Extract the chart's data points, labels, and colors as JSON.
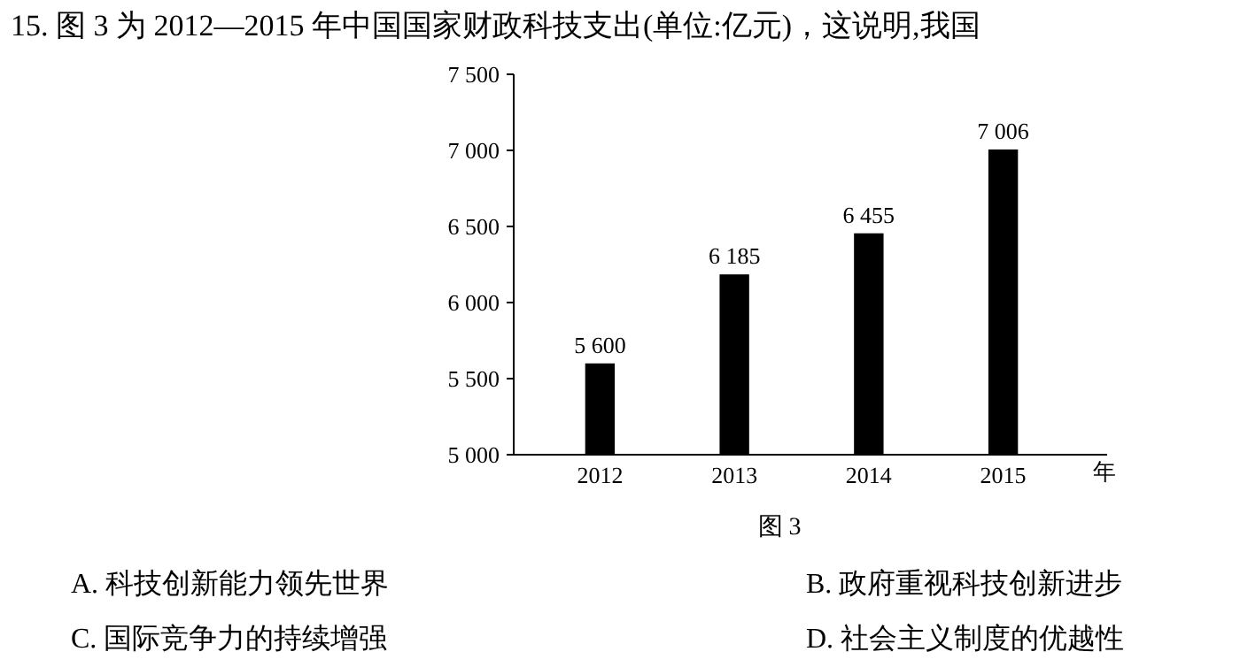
{
  "chart_data": {
    "type": "bar",
    "title": "15. 图 3 为 2012—2015 年中国国家财政科技支出(单位:亿元)，这说明,我国",
    "xlabel": "年",
    "categories": [
      "2012",
      "2013",
      "2014",
      "2015"
    ],
    "values": [
      5600,
      6185,
      6455,
      7006
    ],
    "color": "#000000",
    "data_labels": true,
    "value_labels": [
      "5 600",
      "6 185",
      "6 455",
      "7 006"
    ],
    "ylim": [
      5000,
      7500
    ],
    "yticks": [
      {
        "value": 5000,
        "label": "5 000"
      },
      {
        "value": 5500,
        "label": "5 500"
      },
      {
        "value": 6000,
        "label": "6 000"
      },
      {
        "value": 6500,
        "label": "6 500"
      },
      {
        "value": 7000,
        "label": "7 000"
      },
      {
        "value": 7500,
        "label": "7 500"
      }
    ],
    "grid": false,
    "annotations": [
      "图 3",
      "A. 科技创新能力领先世界",
      "B. 政府重视科技创新进步",
      "C. 国际竞争力的持续增强",
      "D. 社会主义制度的优越性"
    ]
  }
}
